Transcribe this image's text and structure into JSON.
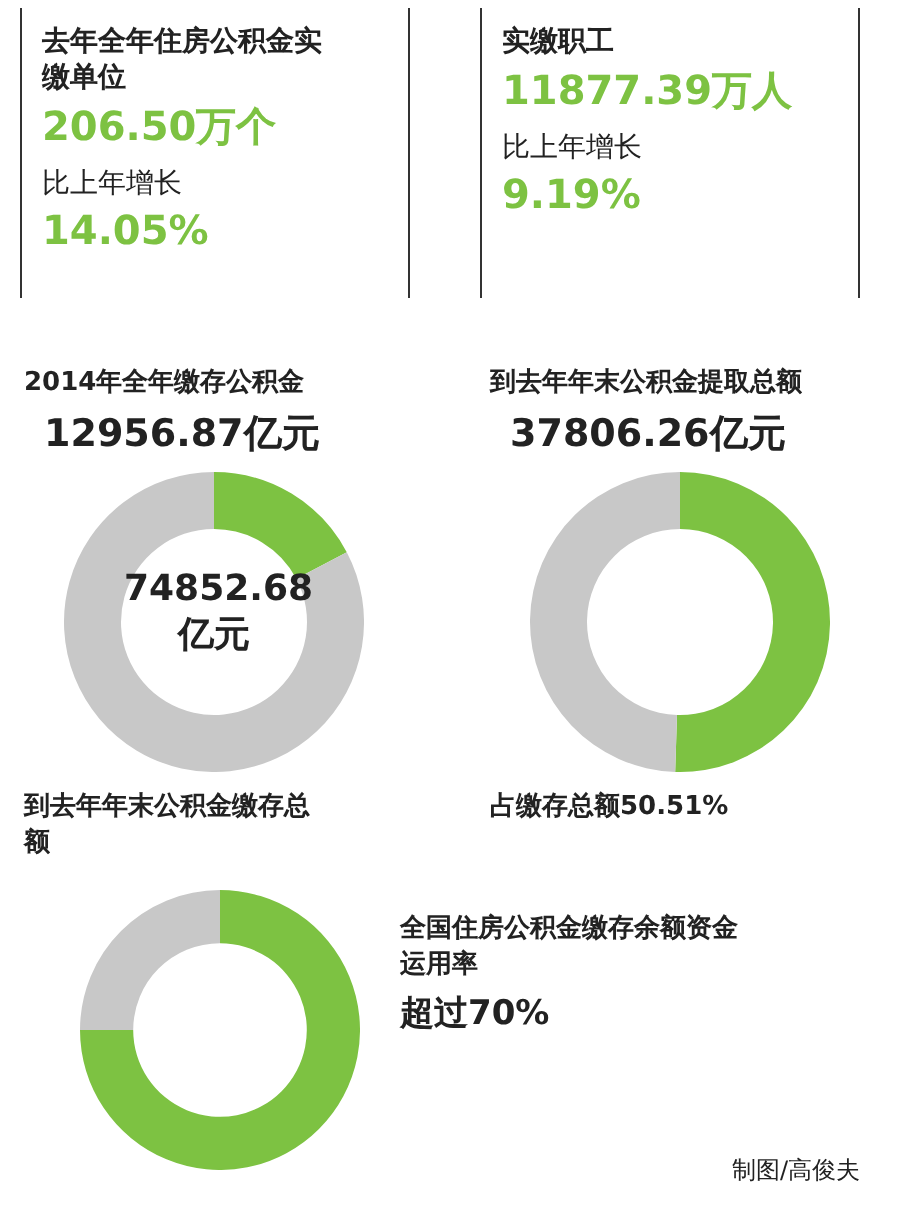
{
  "chart_data": [
    {
      "type": "other",
      "title": "去年全年住房公积金实缴单位",
      "annotations": [
        "206.50万个",
        "比上年增长",
        "14.05%"
      ]
    },
    {
      "type": "other",
      "title": "实缴职工",
      "annotations": [
        "11877.39万人",
        "比上年增长",
        "9.19%"
      ]
    },
    {
      "type": "donut",
      "title": "2014年全年缴存公积金",
      "categories": [
        null,
        null
      ],
      "values": [
        17.3,
        82.7
      ],
      "colors": [
        "#7dc242",
        "#c8c8c8"
      ],
      "annotations": [
        "12956.87亿元",
        "74852.68亿元",
        "到去年年末公积金缴存总额"
      ]
    },
    {
      "type": "donut",
      "title": "到去年年末公积金提取总额",
      "categories": [
        null,
        null
      ],
      "values": [
        50.51,
        49.49
      ],
      "colors": [
        "#7dc242",
        "#c8c8c8"
      ],
      "annotations": [
        "37806.26亿元",
        "占缴存总额50.51%"
      ]
    },
    {
      "type": "donut",
      "title": "全国住房公积金缴存余额资金运用率",
      "categories": [
        null,
        null
      ],
      "values": [
        75,
        25
      ],
      "colors": [
        "#7dc242",
        "#c8c8c8"
      ],
      "annotations": [
        "超过70%",
        "制图/高俊夫"
      ]
    }
  ]
}
